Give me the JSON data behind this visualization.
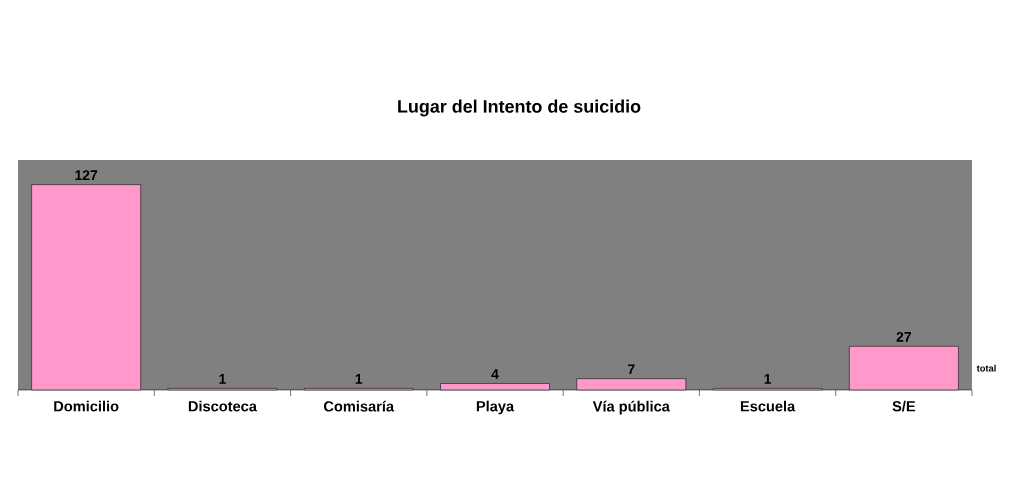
{
  "chart_data": {
    "type": "bar",
    "title": "Lugar del Intento de suicidio",
    "categories": [
      "Domicilio",
      "Discoteca",
      "Comisaría",
      "Playa",
      "Vía pública",
      "Escuela",
      "S/E"
    ],
    "series": [
      {
        "name": "total",
        "color": "#ff99cc",
        "values": [
          127,
          1,
          1,
          4,
          7,
          1,
          27
        ]
      }
    ],
    "data_labels": true
  }
}
